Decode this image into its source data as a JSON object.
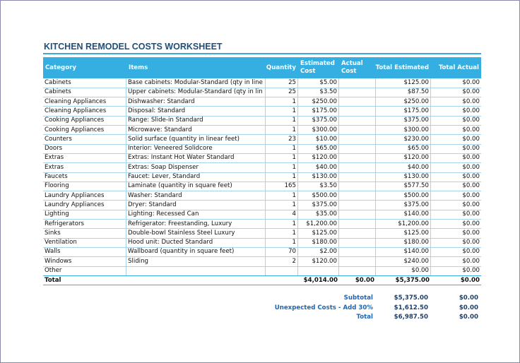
{
  "title": "KITCHEN REMODEL COSTS WORKSHEET",
  "table": {
    "header": [
      "Category",
      "Items",
      "Quantity",
      "Estimated Cost",
      "Actual Cost",
      "Total Estimated",
      "Total Actual"
    ],
    "rows": [
      [
        "Cabinets",
        "Base cabinets: Modular-Standard (qty in line",
        25,
        "$5.00",
        null,
        "$125.00",
        "$0.00"
      ],
      [
        "Cabinets",
        "Upper cabinets: Modular-Standard (qty in lin",
        25,
        "$3.50",
        null,
        "$87.50",
        "$0.00"
      ],
      [
        "Cleaning Appliances",
        "Dishwasher: Standard",
        1,
        "$250.00",
        null,
        "$250.00",
        "$0.00"
      ],
      [
        "Cleaning Appliances",
        "Disposal: Standard",
        1,
        "$175.00",
        null,
        "$175.00",
        "$0.00"
      ],
      [
        "Cooking Appliances",
        "Range: Slide-in Standard",
        1,
        "$375.00",
        null,
        "$375.00",
        "$0.00"
      ],
      [
        "Cooking Appliances",
        "Microwave: Standard",
        1,
        "$300.00",
        null,
        "$300.00",
        "$0.00"
      ],
      [
        "Counters",
        "Solid surface (quantity in linear feet)",
        23,
        "$10.00",
        null,
        "$230.00",
        "$0.00"
      ],
      [
        "Doors",
        "Interior: Veneered Solidcore",
        1,
        "$65.00",
        null,
        "$65.00",
        "$0.00"
      ],
      [
        "Extras",
        "Extras: Instant Hot Water Standard",
        1,
        "$120.00",
        null,
        "$120.00",
        "$0.00"
      ],
      [
        "Extras",
        "Extras: Soap Dispenser",
        1,
        "$40.00",
        null,
        "$40.00",
        "$0.00"
      ],
      [
        "Faucets",
        "Faucet: Lever, Standard",
        1,
        "$130.00",
        null,
        "$130.00",
        "$0.00"
      ],
      [
        "Flooring",
        "Laminate (quantity in square feet)",
        165,
        "$3.50",
        null,
        "$577.50",
        "$0.00"
      ],
      [
        "Laundry Appliances",
        "Washer: Standard",
        1,
        "$500.00",
        null,
        "$500.00",
        "$0.00"
      ],
      [
        "Laundry Appliances",
        "Dryer: Standard",
        1,
        "$375.00",
        null,
        "$375.00",
        "$0.00"
      ],
      [
        "Lighting",
        "Lighting: Recessed Can",
        4,
        "$35.00",
        null,
        "$140.00",
        "$0.00"
      ],
      [
        "Refrigerators",
        "Refrigerator: Freestanding, Luxury",
        1,
        "$1,200.00",
        null,
        "$1,200.00",
        "$0.00"
      ],
      [
        "Sinks",
        "Double-bowl Stainless Steel Luxury",
        1,
        "$125.00",
        null,
        "$125.00",
        "$0.00"
      ],
      [
        "Ventilation",
        "Hood unit: Ducted Standard",
        1,
        "$180.00",
        null,
        "$180.00",
        "$0.00"
      ],
      [
        "Walls",
        "Wallboard (quantity in square feet)",
        70,
        "$2.00",
        null,
        "$140.00",
        "$0.00"
      ],
      [
        "Windows",
        "Sliding",
        2,
        "$120.00",
        null,
        "$240.00",
        "$0.00"
      ],
      [
        "Other",
        null,
        null,
        null,
        null,
        "$0.00",
        "$0.00"
      ]
    ],
    "total": [
      "Total",
      null,
      null,
      "$4,014.00",
      "$0.00",
      "$5,375.00",
      "$0.00"
    ]
  },
  "summary": [
    {
      "label": "Subtotal",
      "total_estimated": "$5,375.00",
      "total_actual": "$0.00"
    },
    {
      "label": "Unexpected Costs - Add 30%",
      "total_estimated": "$1,612.50",
      "total_actual": "$0.00"
    },
    {
      "label": "Total",
      "total_estimated": "$6,987.50",
      "total_actual": "$0.00"
    }
  ]
}
